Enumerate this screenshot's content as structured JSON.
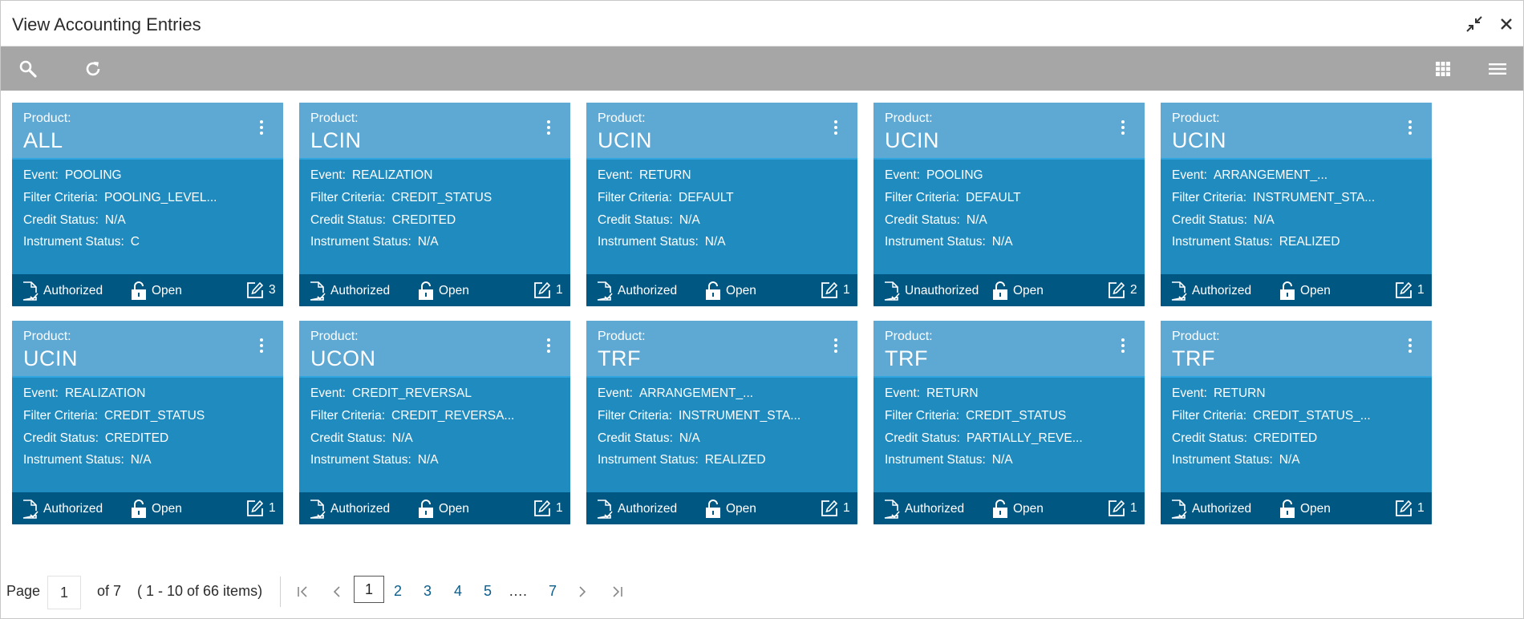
{
  "window": {
    "title": "View Accounting Entries"
  },
  "labels": {
    "product": "Product:",
    "event": "Event:",
    "filter": "Filter Criteria:",
    "credit": "Credit Status:",
    "instrument": "Instrument Status:",
    "lock": "Open"
  },
  "cards": [
    {
      "product": "ALL",
      "event": "POOLING",
      "filter": "POOLING_LEVEL...",
      "credit": "N/A",
      "instrument": "C",
      "auth": "Authorized",
      "count": "3"
    },
    {
      "product": "LCIN",
      "event": "REALIZATION",
      "filter": "CREDIT_STATUS",
      "credit": "CREDITED",
      "instrument": "N/A",
      "auth": "Authorized",
      "count": "1"
    },
    {
      "product": "UCIN",
      "event": "RETURN",
      "filter": "DEFAULT",
      "credit": "N/A",
      "instrument": "N/A",
      "auth": "Authorized",
      "count": "1"
    },
    {
      "product": "UCIN",
      "event": "POOLING",
      "filter": "DEFAULT",
      "credit": "N/A",
      "instrument": "N/A",
      "auth": "Unauthorized",
      "count": "2"
    },
    {
      "product": "UCIN",
      "event": "ARRANGEMENT_...",
      "filter": "INSTRUMENT_STA...",
      "credit": "N/A",
      "instrument": "REALIZED",
      "auth": "Authorized",
      "count": "1"
    },
    {
      "product": "UCIN",
      "event": "REALIZATION",
      "filter": "CREDIT_STATUS",
      "credit": "CREDITED",
      "instrument": "N/A",
      "auth": "Authorized",
      "count": "1"
    },
    {
      "product": "UCON",
      "event": "CREDIT_REVERSAL",
      "filter": "CREDIT_REVERSA...",
      "credit": "N/A",
      "instrument": "N/A",
      "auth": "Authorized",
      "count": "1"
    },
    {
      "product": "TRF",
      "event": "ARRANGEMENT_...",
      "filter": "INSTRUMENT_STA...",
      "credit": "N/A",
      "instrument": "REALIZED",
      "auth": "Authorized",
      "count": "1"
    },
    {
      "product": "TRF",
      "event": "RETURN",
      "filter": "CREDIT_STATUS",
      "credit": "PARTIALLY_REVE...",
      "instrument": "N/A",
      "auth": "Authorized",
      "count": "1"
    },
    {
      "product": "TRF",
      "event": "RETURN",
      "filter": "CREDIT_STATUS_...",
      "credit": "CREDITED",
      "instrument": "N/A",
      "auth": "Authorized",
      "count": "1"
    }
  ],
  "pagination": {
    "page_label": "Page",
    "current": "1",
    "of_label": "of 7",
    "range_label": "( 1 - 10 of 66 items)",
    "pages": [
      "1",
      "2",
      "3",
      "4",
      "5",
      "7"
    ],
    "ellipsis": "…."
  },
  "colors": {
    "card_body": "#1f8bbe",
    "card_head": "#5ea8d4",
    "card_foot": "#005782",
    "toolbar": "#a6a6a6",
    "link": "#0b5d8c"
  },
  "icons": {
    "search": "search-icon",
    "refresh": "refresh-icon",
    "grid_view": "grid-view-icon",
    "list_view": "list-view-icon",
    "minimize": "minimize-icon",
    "close": "close-icon",
    "kebab": "kebab-menu-icon",
    "document": "document-status-icon",
    "lock": "unlock-icon",
    "edit": "edit-icon"
  }
}
